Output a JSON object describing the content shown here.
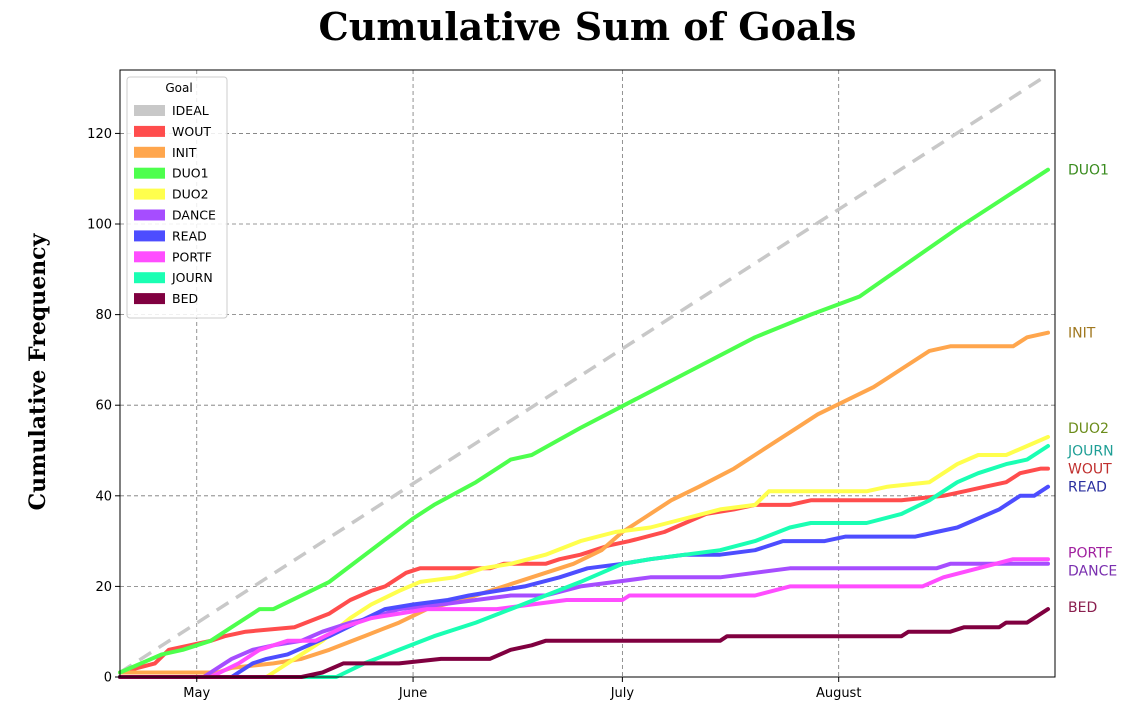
{
  "chart_data": {
    "type": "line",
    "title": "Cumulative Sum of Goals",
    "ylabel": "Cumulative Frequency",
    "xlabel": "",
    "xlim": [
      "2022-04-20",
      "2022-09-01"
    ],
    "ylim": [
      0,
      134
    ],
    "yticks": [
      0,
      20,
      40,
      60,
      80,
      100,
      120
    ],
    "xticks": [
      {
        "date": "2022-05-01",
        "label": "May"
      },
      {
        "date": "2022-06-01",
        "label": "June"
      },
      {
        "date": "2022-07-01",
        "label": "July"
      },
      {
        "date": "2022-08-01",
        "label": "August"
      }
    ],
    "grid": true,
    "legend": {
      "title": "Goal",
      "placement": "upper-left"
    },
    "series": [
      {
        "name": "IDEAL",
        "color": "#c8c8c8",
        "dashed": true,
        "points": [
          [
            "2022-04-20",
            1
          ],
          [
            "2022-08-31",
            133
          ]
        ]
      },
      {
        "name": "WOUT",
        "color": "#ff4d4d",
        "end_label_color": "#c0302f",
        "points": [
          [
            "2022-04-20",
            1
          ],
          [
            "2022-04-25",
            3
          ],
          [
            "2022-04-27",
            6
          ],
          [
            "2022-05-03",
            8
          ],
          [
            "2022-05-05",
            9
          ],
          [
            "2022-05-08",
            10
          ],
          [
            "2022-05-15",
            11
          ],
          [
            "2022-05-20",
            14
          ],
          [
            "2022-05-23",
            17
          ],
          [
            "2022-05-26",
            19
          ],
          [
            "2022-05-28",
            20
          ],
          [
            "2022-05-31",
            23
          ],
          [
            "2022-06-02",
            24
          ],
          [
            "2022-06-12",
            24
          ],
          [
            "2022-06-14",
            25
          ],
          [
            "2022-06-20",
            25
          ],
          [
            "2022-06-22",
            26
          ],
          [
            "2022-06-25",
            27
          ],
          [
            "2022-06-29",
            29
          ],
          [
            "2022-07-02",
            30
          ],
          [
            "2022-07-07",
            32
          ],
          [
            "2022-07-10",
            34
          ],
          [
            "2022-07-13",
            36
          ],
          [
            "2022-07-17",
            37
          ],
          [
            "2022-07-20",
            38
          ],
          [
            "2022-07-25",
            38
          ],
          [
            "2022-07-28",
            39
          ],
          [
            "2022-08-10",
            39
          ],
          [
            "2022-08-16",
            40
          ],
          [
            "2022-08-19",
            41
          ],
          [
            "2022-08-22",
            42
          ],
          [
            "2022-08-25",
            43
          ],
          [
            "2022-08-27",
            45
          ],
          [
            "2022-08-30",
            46
          ],
          [
            "2022-08-31",
            46
          ]
        ]
      },
      {
        "name": "INIT",
        "color": "#ffa64d",
        "end_label_color": "#a07820",
        "points": [
          [
            "2022-04-20",
            1
          ],
          [
            "2022-05-04",
            1
          ],
          [
            "2022-05-06",
            2
          ],
          [
            "2022-05-12",
            3
          ],
          [
            "2022-05-16",
            4
          ],
          [
            "2022-05-20",
            6
          ],
          [
            "2022-05-25",
            9
          ],
          [
            "2022-05-30",
            12
          ],
          [
            "2022-06-03",
            15
          ],
          [
            "2022-06-08",
            17
          ],
          [
            "2022-06-12",
            19
          ],
          [
            "2022-06-18",
            22
          ],
          [
            "2022-06-24",
            25
          ],
          [
            "2022-06-28",
            28
          ],
          [
            "2022-07-01",
            32
          ],
          [
            "2022-07-04",
            35
          ],
          [
            "2022-07-08",
            39
          ],
          [
            "2022-07-12",
            42
          ],
          [
            "2022-07-17",
            46
          ],
          [
            "2022-07-21",
            50
          ],
          [
            "2022-07-26",
            55
          ],
          [
            "2022-07-29",
            58
          ],
          [
            "2022-08-02",
            61
          ],
          [
            "2022-08-06",
            64
          ],
          [
            "2022-08-10",
            68
          ],
          [
            "2022-08-14",
            72
          ],
          [
            "2022-08-17",
            73
          ],
          [
            "2022-08-26",
            73
          ],
          [
            "2022-08-28",
            75
          ],
          [
            "2022-08-31",
            76
          ]
        ]
      },
      {
        "name": "DUO1",
        "color": "#4dff4d",
        "end_label_color": "#3a8c1f",
        "points": [
          [
            "2022-04-20",
            1
          ],
          [
            "2022-04-23",
            3
          ],
          [
            "2022-04-26",
            5
          ],
          [
            "2022-04-29",
            6
          ],
          [
            "2022-05-03",
            8
          ],
          [
            "2022-05-06",
            11
          ],
          [
            "2022-05-10",
            15
          ],
          [
            "2022-05-12",
            15
          ],
          [
            "2022-05-20",
            21
          ],
          [
            "2022-06-01",
            35
          ],
          [
            "2022-06-04",
            38
          ],
          [
            "2022-06-10",
            43
          ],
          [
            "2022-06-15",
            48
          ],
          [
            "2022-06-18",
            49
          ],
          [
            "2022-06-25",
            55
          ],
          [
            "2022-07-10",
            67
          ],
          [
            "2022-07-20",
            75
          ],
          [
            "2022-07-28",
            80
          ],
          [
            "2022-08-04",
            84
          ],
          [
            "2022-08-18",
            99
          ],
          [
            "2022-08-31",
            112
          ]
        ]
      },
      {
        "name": "DUO2",
        "color": "#ffff4d",
        "end_label_color": "#6b8c1a",
        "points": [
          [
            "2022-04-20",
            0
          ],
          [
            "2022-05-11",
            0
          ],
          [
            "2022-05-15",
            4
          ],
          [
            "2022-05-19",
            8
          ],
          [
            "2022-05-23",
            13
          ],
          [
            "2022-05-26",
            16
          ],
          [
            "2022-05-30",
            19
          ],
          [
            "2022-06-02",
            21
          ],
          [
            "2022-06-07",
            22
          ],
          [
            "2022-06-11",
            24
          ],
          [
            "2022-06-15",
            25
          ],
          [
            "2022-06-20",
            27
          ],
          [
            "2022-06-25",
            30
          ],
          [
            "2022-06-30",
            32
          ],
          [
            "2022-07-05",
            33
          ],
          [
            "2022-07-10",
            35
          ],
          [
            "2022-07-15",
            37
          ],
          [
            "2022-07-20",
            38
          ],
          [
            "2022-07-22",
            41
          ],
          [
            "2022-08-05",
            41
          ],
          [
            "2022-08-08",
            42
          ],
          [
            "2022-08-14",
            43
          ],
          [
            "2022-08-18",
            47
          ],
          [
            "2022-08-21",
            49
          ],
          [
            "2022-08-25",
            49
          ],
          [
            "2022-08-28",
            51
          ],
          [
            "2022-08-31",
            53
          ]
        ]
      },
      {
        "name": "DANCE",
        "color": "#a64dff",
        "end_label_color": "#7a2faf",
        "points": [
          [
            "2022-04-20",
            0
          ],
          [
            "2022-05-02",
            0
          ],
          [
            "2022-05-04",
            2
          ],
          [
            "2022-05-06",
            4
          ],
          [
            "2022-05-09",
            6
          ],
          [
            "2022-05-12",
            7
          ],
          [
            "2022-05-16",
            8
          ],
          [
            "2022-05-19",
            10
          ],
          [
            "2022-05-23",
            12
          ],
          [
            "2022-05-26",
            13
          ],
          [
            "2022-05-30",
            15
          ],
          [
            "2022-06-05",
            16
          ],
          [
            "2022-06-10",
            17
          ],
          [
            "2022-06-15",
            18
          ],
          [
            "2022-06-20",
            18
          ],
          [
            "2022-06-25",
            20
          ],
          [
            "2022-06-30",
            21
          ],
          [
            "2022-07-05",
            22
          ],
          [
            "2022-07-15",
            22
          ],
          [
            "2022-07-20",
            23
          ],
          [
            "2022-07-25",
            24
          ],
          [
            "2022-08-15",
            24
          ],
          [
            "2022-08-17",
            25
          ],
          [
            "2022-08-31",
            25
          ]
        ]
      },
      {
        "name": "READ",
        "color": "#4d4dff",
        "end_label_color": "#2a2f9f",
        "points": [
          [
            "2022-04-20",
            0
          ],
          [
            "2022-05-06",
            0
          ],
          [
            "2022-05-09",
            3
          ],
          [
            "2022-05-11",
            4
          ],
          [
            "2022-05-14",
            5
          ],
          [
            "2022-05-17",
            7
          ],
          [
            "2022-05-20",
            9
          ],
          [
            "2022-05-24",
            12
          ],
          [
            "2022-05-28",
            15
          ],
          [
            "2022-06-01",
            16
          ],
          [
            "2022-06-06",
            17
          ],
          [
            "2022-06-09",
            18
          ],
          [
            "2022-06-13",
            19
          ],
          [
            "2022-06-17",
            20
          ],
          [
            "2022-06-22",
            22
          ],
          [
            "2022-06-26",
            24
          ],
          [
            "2022-07-01",
            25
          ],
          [
            "2022-07-05",
            26
          ],
          [
            "2022-07-10",
            27
          ],
          [
            "2022-07-15",
            27
          ],
          [
            "2022-07-20",
            28
          ],
          [
            "2022-07-24",
            30
          ],
          [
            "2022-07-30",
            30
          ],
          [
            "2022-08-02",
            31
          ],
          [
            "2022-08-12",
            31
          ],
          [
            "2022-08-15",
            32
          ],
          [
            "2022-08-18",
            33
          ],
          [
            "2022-08-21",
            35
          ],
          [
            "2022-08-24",
            37
          ],
          [
            "2022-08-27",
            40
          ],
          [
            "2022-08-29",
            40
          ],
          [
            "2022-08-31",
            42
          ]
        ]
      },
      {
        "name": "PORTF",
        "color": "#ff4dff",
        "end_label_color": "#a0209f",
        "points": [
          [
            "2022-04-20",
            0
          ],
          [
            "2022-05-03",
            0
          ],
          [
            "2022-05-07",
            3
          ],
          [
            "2022-05-10",
            6
          ],
          [
            "2022-05-14",
            8
          ],
          [
            "2022-05-18",
            8
          ],
          [
            "2022-05-22",
            11
          ],
          [
            "2022-05-26",
            13
          ],
          [
            "2022-05-30",
            14
          ],
          [
            "2022-06-03",
            15
          ],
          [
            "2022-06-13",
            15
          ],
          [
            "2022-06-18",
            16
          ],
          [
            "2022-06-23",
            17
          ],
          [
            "2022-07-01",
            17
          ],
          [
            "2022-07-02",
            18
          ],
          [
            "2022-07-20",
            18
          ],
          [
            "2022-07-25",
            20
          ],
          [
            "2022-08-13",
            20
          ],
          [
            "2022-08-16",
            22
          ],
          [
            "2022-08-21",
            24
          ],
          [
            "2022-08-26",
            26
          ],
          [
            "2022-08-31",
            26
          ]
        ]
      },
      {
        "name": "JOURN",
        "color": "#1affb3",
        "end_label_color": "#1f9f96",
        "points": [
          [
            "2022-04-20",
            0
          ],
          [
            "2022-05-21",
            0
          ],
          [
            "2022-05-25",
            3
          ],
          [
            "2022-05-30",
            6
          ],
          [
            "2022-06-04",
            9
          ],
          [
            "2022-06-10",
            12
          ],
          [
            "2022-06-15",
            15
          ],
          [
            "2022-06-20",
            18
          ],
          [
            "2022-06-25",
            21
          ],
          [
            "2022-07-01",
            25
          ],
          [
            "2022-07-05",
            26
          ],
          [
            "2022-07-10",
            27
          ],
          [
            "2022-07-15",
            28
          ],
          [
            "2022-07-20",
            30
          ],
          [
            "2022-07-25",
            33
          ],
          [
            "2022-07-28",
            34
          ],
          [
            "2022-08-05",
            34
          ],
          [
            "2022-08-10",
            36
          ],
          [
            "2022-08-14",
            39
          ],
          [
            "2022-08-18",
            43
          ],
          [
            "2022-08-21",
            45
          ],
          [
            "2022-08-25",
            47
          ],
          [
            "2022-08-28",
            48
          ],
          [
            "2022-08-31",
            51
          ]
        ]
      },
      {
        "name": "BED",
        "color": "#800040",
        "end_label_color": "#8a1f4f",
        "points": [
          [
            "2022-04-20",
            0
          ],
          [
            "2022-05-16",
            0
          ],
          [
            "2022-05-19",
            1
          ],
          [
            "2022-05-22",
            3
          ],
          [
            "2022-05-30",
            3
          ],
          [
            "2022-06-05",
            4
          ],
          [
            "2022-06-12",
            4
          ],
          [
            "2022-06-15",
            6
          ],
          [
            "2022-06-18",
            7
          ],
          [
            "2022-06-20",
            8
          ],
          [
            "2022-07-15",
            8
          ],
          [
            "2022-07-16",
            9
          ],
          [
            "2022-08-10",
            9
          ],
          [
            "2022-08-11",
            10
          ],
          [
            "2022-08-17",
            10
          ],
          [
            "2022-08-19",
            11
          ],
          [
            "2022-08-24",
            11
          ],
          [
            "2022-08-25",
            12
          ],
          [
            "2022-08-28",
            12
          ],
          [
            "2022-08-31",
            15
          ]
        ]
      }
    ],
    "end_labels": [
      {
        "series": "DUO1",
        "text": "DUO1",
        "y": 112
      },
      {
        "series": "INIT",
        "text": "INIT",
        "y": 76
      },
      {
        "series": "DUO2",
        "text": "DUO2",
        "y": 55
      },
      {
        "series": "JOURN",
        "text": "JOURN",
        "y": 50
      },
      {
        "series": "WOUT",
        "text": "WOUT",
        "y": 46
      },
      {
        "series": "READ",
        "text": "READ",
        "y": 42
      },
      {
        "series": "PORTF",
        "text": "PORTF",
        "y": 27.5
      },
      {
        "series": "DANCE",
        "text": "DANCE",
        "y": 23.5
      },
      {
        "series": "BED",
        "text": "BED",
        "y": 15.5
      }
    ]
  }
}
